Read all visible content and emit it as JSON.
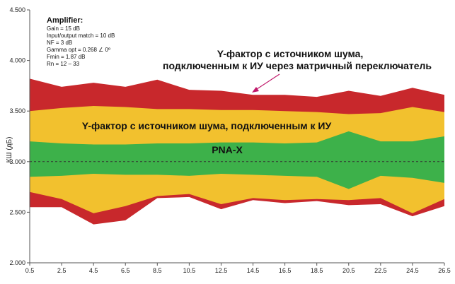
{
  "chart_data": {
    "type": "area",
    "ylabel": "КШ (дБ)",
    "ylim": [
      2.0,
      4.5
    ],
    "y_ticks": [
      "2.000",
      "2.500",
      "3.000",
      "3.500",
      "4.000",
      "4.500"
    ],
    "x": [
      0.5,
      2.5,
      4.5,
      6.5,
      8.5,
      10.5,
      12.5,
      14.5,
      16.5,
      18.5,
      20.5,
      22.5,
      24.5,
      26.5
    ],
    "x_tick_labels": [
      "0.5",
      "2.5",
      "4.5",
      "6.5",
      "8.5",
      "10.5",
      "12.5",
      "14.5",
      "16.5",
      "18.5",
      "20.5",
      "22.5",
      "24.5",
      "26.5"
    ],
    "reference_line": 3.0,
    "bands": [
      {
        "color": "#c8282c",
        "upper": [
          3.82,
          3.74,
          3.78,
          3.74,
          3.81,
          3.71,
          3.7,
          3.66,
          3.66,
          3.64,
          3.7,
          3.65,
          3.73,
          3.66
        ],
        "lower": [
          2.55,
          2.55,
          2.38,
          2.42,
          2.64,
          2.65,
          2.53,
          2.62,
          2.59,
          2.61,
          2.57,
          2.58,
          2.46,
          2.56
        ]
      },
      {
        "color": "#f2c12e",
        "upper": [
          3.5,
          3.53,
          3.55,
          3.54,
          3.52,
          3.52,
          3.51,
          3.51,
          3.5,
          3.49,
          3.47,
          3.48,
          3.54,
          3.49
        ],
        "lower": [
          2.7,
          2.63,
          2.49,
          2.56,
          2.66,
          2.68,
          2.58,
          2.64,
          2.62,
          2.63,
          2.62,
          2.64,
          2.49,
          2.63
        ]
      },
      {
        "color": "#3db14a",
        "upper": [
          3.2,
          3.18,
          3.17,
          3.17,
          3.18,
          3.18,
          3.19,
          3.19,
          3.18,
          3.19,
          3.3,
          3.2,
          3.2,
          3.25
        ],
        "lower": [
          2.85,
          2.86,
          2.88,
          2.87,
          2.87,
          2.86,
          2.88,
          2.87,
          2.86,
          2.85,
          2.73,
          2.86,
          2.84,
          2.79
        ]
      }
    ],
    "annotations": {
      "amplifier_title": "Amplifier:",
      "amplifier_lines": [
        "Gain = 15 dB",
        "Input/output match = 10 dB",
        "NF = 3 dB",
        "Gamma opt = 0.268 ∠ 0º",
        "Fmin = 1.87 dB",
        "Rn = 12 – 33"
      ],
      "red_band_line1": "Y-фактор с источником шума,",
      "red_band_line2": "подключенным к ИУ через матричный переключатель",
      "yellow_band": "Y-фактор с источником шума, подключенным к ИУ",
      "green_band": "PNA-X"
    },
    "grid": false,
    "legend": "none"
  }
}
